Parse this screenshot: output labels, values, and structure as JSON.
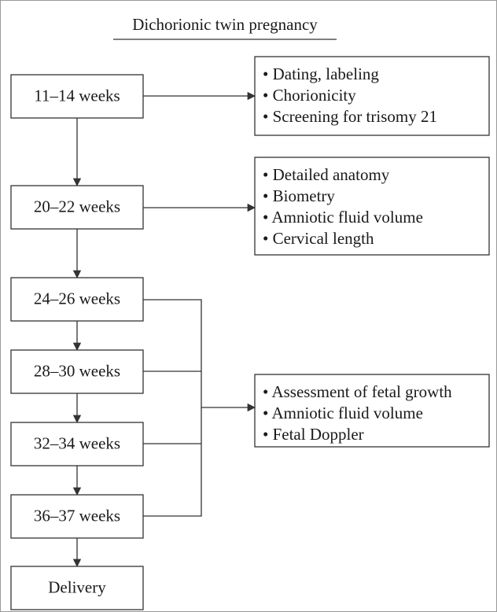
{
  "title": "Dichorionic twin pregnancy",
  "stages": [
    {
      "label": "11–14 weeks"
    },
    {
      "label": "20–22 weeks"
    },
    {
      "label": "24–26 weeks"
    },
    {
      "label": "28–30 weeks"
    },
    {
      "label": "32–34 weeks"
    },
    {
      "label": "36–37 weeks"
    },
    {
      "label": "Delivery"
    }
  ],
  "assessments": [
    {
      "items": [
        "• Dating, labeling",
        "• Chorionicity",
        "• Screening for trisomy 21"
      ]
    },
    {
      "items": [
        "• Detailed anatomy",
        "• Biometry",
        "• Amniotic fluid volume",
        "• Cervical length"
      ]
    },
    {
      "items": [
        "• Assessment of fetal growth",
        "• Amniotic fluid volume",
        "• Fetal Doppler"
      ]
    }
  ]
}
